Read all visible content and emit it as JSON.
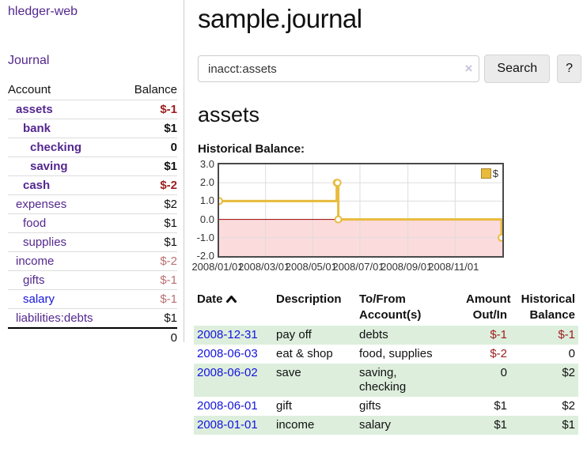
{
  "app": {
    "title": "hledger-web"
  },
  "colors": {
    "link_purple": "#54278e",
    "link_blue": "#1414dd",
    "negative_strong": "#9d1d1d",
    "negative_soft": "#bb6f6f",
    "row_green": "#ddeedd",
    "chart_gold": "#e8bb3d",
    "chart_negative_region": "#fbdbdb",
    "chart_zero_line": "#990000"
  },
  "sidebar": {
    "journal_link": "Journal",
    "accounts_table": {
      "headers": [
        "Account",
        "Balance"
      ],
      "rows": [
        {
          "name": "assets",
          "depth": 0,
          "bold": true,
          "balance": "$-1",
          "balance_style": "neg"
        },
        {
          "name": "bank",
          "depth": 1,
          "bold": true,
          "balance": "$1",
          "balance_style": "pos"
        },
        {
          "name": "checking",
          "depth": 2,
          "bold": true,
          "balance": "0",
          "balance_style": "pos"
        },
        {
          "name": "saving",
          "depth": 2,
          "bold": true,
          "balance": "$1",
          "balance_style": "pos"
        },
        {
          "name": "cash",
          "depth": 1,
          "bold": true,
          "balance": "$-2",
          "balance_style": "neg"
        },
        {
          "name": "expenses",
          "depth": 0,
          "bold": false,
          "balance": "$2",
          "balance_style": "pos"
        },
        {
          "name": "food",
          "depth": 1,
          "bold": false,
          "balance": "$1",
          "balance_style": "pos"
        },
        {
          "name": "supplies",
          "depth": 1,
          "bold": false,
          "balance": "$1",
          "balance_style": "pos"
        },
        {
          "name": "income",
          "depth": 0,
          "bold": false,
          "balance": "$-2",
          "balance_style": "neg-soft"
        },
        {
          "name": "gifts",
          "depth": 1,
          "bold": false,
          "balance": "$-1",
          "balance_style": "neg-soft"
        },
        {
          "name": "salary",
          "depth": 1,
          "bold": false,
          "balance": "$-1",
          "balance_style": "neg-soft",
          "link_style": "blue"
        },
        {
          "name": "liabilities:debts",
          "depth": 0,
          "bold": false,
          "balance": "$1",
          "balance_style": "pos",
          "last": true
        }
      ],
      "total": "0"
    }
  },
  "header": {
    "title": "sample.journal"
  },
  "search": {
    "value": "inacct:assets",
    "clear_icon": "×",
    "button_label": "Search",
    "help_label": "?"
  },
  "account_page": {
    "heading": "assets",
    "chart_label": "Historical Balance:"
  },
  "chart_data": {
    "type": "line",
    "step": "after",
    "title": "Historical Balance",
    "legend": [
      {
        "label": "$",
        "color": "#e8bb3d"
      }
    ],
    "x_range": [
      "2008-01-01",
      "2008-12-31"
    ],
    "x_ticks": [
      {
        "date": "2008-01-01",
        "label": "2008/01/01"
      },
      {
        "date": "2008-03-01",
        "label": "2008/03/01"
      },
      {
        "date": "2008-05-01",
        "label": "2008/05/01"
      },
      {
        "date": "2008-07-01",
        "label": "2008/07/01"
      },
      {
        "date": "2008-09-01",
        "label": "2008/09/01"
      },
      {
        "date": "2008-11-01",
        "label": "2008/11/01"
      }
    ],
    "y_ticks": [
      3.0,
      2.0,
      1.0,
      0.0,
      -1.0,
      -2.0
    ],
    "ylim": [
      -2,
      3
    ],
    "grid": true,
    "legend_position": "top-right",
    "points": [
      {
        "date": "2008-01-01",
        "value": 1
      },
      {
        "date": "2008-06-01",
        "value": 2
      },
      {
        "date": "2008-06-02",
        "value": 2
      },
      {
        "date": "2008-06-03",
        "value": 0
      },
      {
        "date": "2008-12-31",
        "value": -1
      }
    ]
  },
  "register_table": {
    "headers": [
      {
        "id": "date",
        "lines": [
          "Date"
        ],
        "sorted": "asc",
        "align": "left"
      },
      {
        "id": "description",
        "lines": [
          "Description"
        ],
        "align": "left"
      },
      {
        "id": "accounts",
        "lines": [
          "To/From",
          "Account(s)"
        ],
        "align": "left"
      },
      {
        "id": "amount",
        "lines": [
          "Amount",
          "Out/In"
        ],
        "align": "right"
      },
      {
        "id": "balance",
        "lines": [
          "Historical",
          "Balance"
        ],
        "align": "right"
      }
    ],
    "rows": [
      {
        "date": "2008-12-31",
        "description": "pay off",
        "accounts_lines": [
          "debts"
        ],
        "amount": "$-1",
        "amount_neg": true,
        "balance": "$-1",
        "balance_neg": true
      },
      {
        "date": "2008-06-03",
        "description": "eat & shop",
        "accounts_lines": [
          "food, supplies"
        ],
        "amount": "$-2",
        "amount_neg": true,
        "balance": "0",
        "balance_neg": false
      },
      {
        "date": "2008-06-02",
        "description": "save",
        "accounts_lines": [
          "saving,",
          "checking"
        ],
        "amount": "0",
        "amount_neg": false,
        "balance": "$2",
        "balance_neg": false
      },
      {
        "date": "2008-06-01",
        "description": "gift",
        "accounts_lines": [
          "gifts"
        ],
        "amount": "$1",
        "amount_neg": false,
        "balance": "$2",
        "balance_neg": false
      },
      {
        "date": "2008-01-01",
        "description": "income",
        "accounts_lines": [
          "salary"
        ],
        "amount": "$1",
        "amount_neg": false,
        "balance": "$1",
        "balance_neg": false
      }
    ]
  }
}
